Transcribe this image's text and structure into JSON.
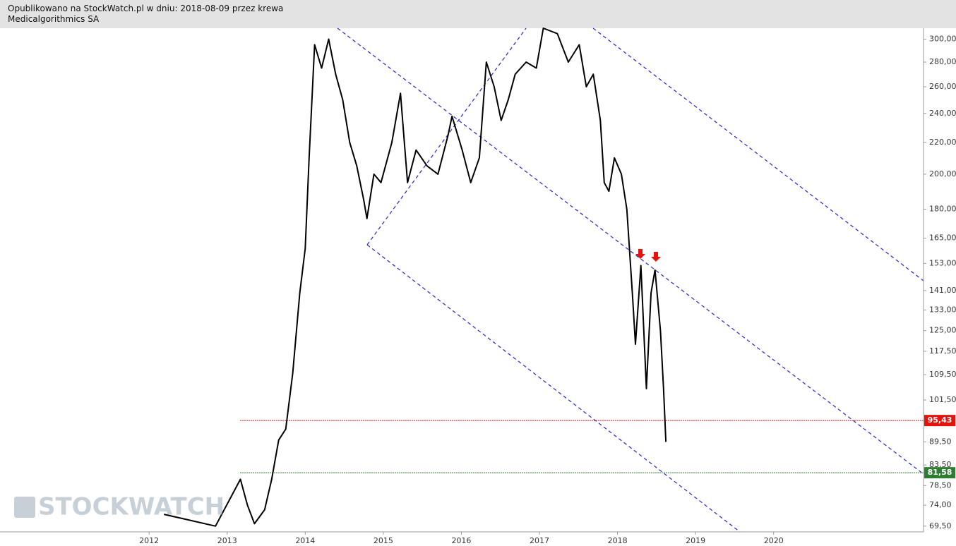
{
  "header": {
    "line1": "Opublikowano na StockWatch.pl w dniu: 2018-08-09 przez krewa",
    "line2": "Medicalgorithmics SA"
  },
  "watermark": "STOCKWATCH",
  "chart_data": {
    "type": "line",
    "log_scale": true,
    "xlim": [
      2010.09,
      2021.92
    ],
    "xticks": [
      2012,
      2013,
      2014,
      2015,
      2016,
      2017,
      2018,
      2019,
      2020
    ],
    "ylim": [
      68.3,
      310
    ],
    "yticks": [
      {
        "value": 300,
        "label": "300,00"
      },
      {
        "value": 280,
        "label": "280,00"
      },
      {
        "value": 260,
        "label": "260,00"
      },
      {
        "value": 240,
        "label": "240,00"
      },
      {
        "value": 220,
        "label": "220,00"
      },
      {
        "value": 200,
        "label": "200,00"
      },
      {
        "value": 180,
        "label": "180,00"
      },
      {
        "value": 165,
        "label": "165,00"
      },
      {
        "value": 153,
        "label": "153,00"
      },
      {
        "value": 141,
        "label": "141,00"
      },
      {
        "value": 133,
        "label": "133,00"
      },
      {
        "value": 125,
        "label": "125,00"
      },
      {
        "value": 117.5,
        "label": "117,50"
      },
      {
        "value": 109.5,
        "label": "109,50"
      },
      {
        "value": 101.5,
        "label": "101,50"
      },
      {
        "value": 89.5,
        "label": "89,50"
      },
      {
        "value": 83.5,
        "label": "83,50"
      },
      {
        "value": 78.5,
        "label": "78,50"
      },
      {
        "value": 74,
        "label": "74,00"
      },
      {
        "value": 69.5,
        "label": "69,50"
      }
    ],
    "levels": [
      {
        "value": 95.43,
        "label": "95,43",
        "color": "#e8120c"
      },
      {
        "value": 81.58,
        "label": "81,58",
        "color": "#2e7d32"
      }
    ],
    "series": [
      {
        "color": "#000000",
        "x": [
          2012.19,
          2012.85,
          2013.17,
          2013.26,
          2013.35,
          2013.48,
          2013.57,
          2013.66,
          2013.75,
          2013.84,
          2013.93,
          2014.0,
          2014.05,
          2014.12,
          2014.21,
          2014.3,
          2014.39,
          2014.48,
          2014.57,
          2014.66,
          2014.75,
          2014.79,
          2014.88,
          2014.97,
          2015.11,
          2015.22,
          2015.31,
          2015.42,
          2015.56,
          2015.7,
          2015.83,
          2015.88,
          2016.01,
          2016.12,
          2016.23,
          2016.32,
          2016.42,
          2016.51,
          2016.6,
          2016.69,
          2016.83,
          2016.96,
          2017.05,
          2017.23,
          2017.37,
          2017.51,
          2017.6,
          2017.69,
          2017.78,
          2017.83,
          2017.89,
          2017.96,
          2018.05,
          2018.12,
          2018.19,
          2018.23,
          2018.3,
          2018.37,
          2018.43,
          2018.48,
          2018.55,
          2018.59,
          2018.62
        ],
        "values": [
          72,
          69.5,
          80,
          74,
          70,
          73,
          80,
          90,
          93,
          110,
          140,
          160,
          210,
          295,
          275,
          300,
          270,
          250,
          220,
          205,
          185,
          175,
          200,
          195,
          220,
          255,
          195,
          215,
          205,
          200,
          225,
          238,
          215,
          195,
          210,
          280,
          260,
          235,
          250,
          270,
          280,
          275,
          310,
          305,
          280,
          295,
          260,
          270,
          235,
          195,
          190,
          210,
          200,
          180,
          140,
          120,
          152,
          105,
          140,
          150,
          125,
          105,
          89.5
        ]
      }
    ]
  }
}
